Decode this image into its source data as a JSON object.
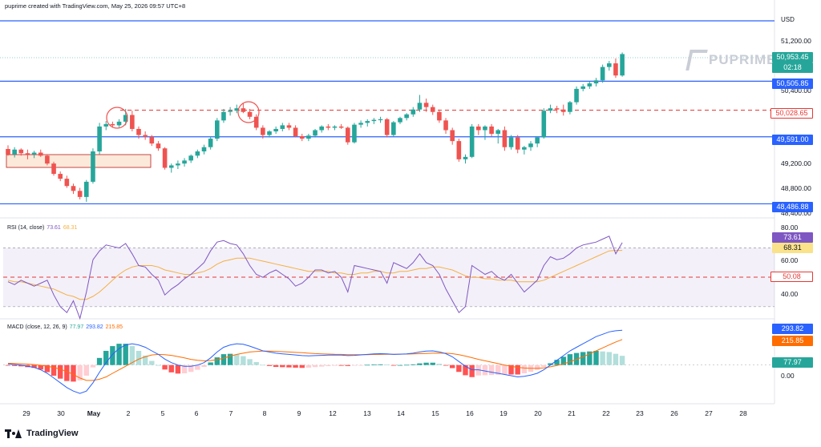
{
  "header": {
    "text": "puprime created with TradingView.com, May 25, 2026 09:57 UTC+8"
  },
  "currency_label": "USD",
  "brand": {
    "name": "PUPRIME"
  },
  "price_axis": {
    "ticks": [
      "51,200.00",
      "50,400.00",
      "49,200.00",
      "48,800.00",
      "48,400.00"
    ]
  },
  "price_labels": {
    "last_price": "50,953.45",
    "countdown": "02:18",
    "level_1": "50,505.85",
    "level_2": "50,028.65",
    "level_3": "49,591.00",
    "level_4": "48,486.88"
  },
  "rsi": {
    "title": "RSI (14, close)",
    "value_1": "73.61",
    "value_2": "68.31",
    "axis_ticks": [
      "80.00",
      "60.00",
      "40.00"
    ],
    "label_rsi": "73.61",
    "label_ma": "68.31",
    "label_mid": "50.08"
  },
  "macd": {
    "title": "MACD (close, 12, 26, 9)",
    "value_hist": "77.97",
    "value_macd": "293.82",
    "value_signal": "215.85",
    "label_macd": "293.82",
    "label_signal": "215.85",
    "label_hist": "77.97",
    "zero_tick": "0.00"
  },
  "date_axis": {
    "ticks": [
      "29",
      "30",
      "May",
      "2",
      "5",
      "6",
      "7",
      "8",
      "9",
      "12",
      "13",
      "14",
      "15",
      "16",
      "19",
      "20",
      "21",
      "22",
      "23",
      "26",
      "27",
      "28"
    ]
  },
  "footer": {
    "logo_text": "TradingView"
  },
  "colors": {
    "bull": "#26a69a",
    "bear": "#ef5350",
    "level_line": "#2962ff",
    "dashed_level": "#e53935",
    "rsi_line": "#7e57c2",
    "rsi_ma": "#f5b041",
    "macd_line": "#2962ff",
    "signal_line": "#ff6d00"
  },
  "chart_data": {
    "type": "candlestick",
    "unit": "USD",
    "levels": [
      50505.85,
      50028.65,
      49591.0,
      48486.88
    ],
    "last_price": 50953.45,
    "candles": [
      [
        49390,
        49450,
        49280,
        49300
      ],
      [
        49300,
        49420,
        49250,
        49380
      ],
      [
        49380,
        49400,
        49280,
        49320
      ],
      [
        49320,
        49380,
        49220,
        49300
      ],
      [
        49300,
        49360,
        49240,
        49330
      ],
      [
        49330,
        49380,
        49260,
        49280
      ],
      [
        49280,
        49300,
        49120,
        49150
      ],
      [
        49150,
        49180,
        48950,
        48980
      ],
      [
        48980,
        49020,
        48860,
        48900
      ],
      [
        48900,
        48950,
        48750,
        48780
      ],
      [
        48780,
        48820,
        48650,
        48700
      ],
      [
        48700,
        48750,
        48560,
        48600
      ],
      [
        48600,
        48880,
        48520,
        48850
      ],
      [
        48850,
        49400,
        48820,
        49350
      ],
      [
        49350,
        49820,
        49300,
        49760
      ],
      [
        49760,
        49850,
        49700,
        49800
      ],
      [
        49800,
        49840,
        49740,
        49780
      ],
      [
        49780,
        49880,
        49750,
        49840
      ],
      [
        49840,
        50050,
        49780,
        49950
      ],
      [
        49950,
        50020,
        49680,
        49720
      ],
      [
        49720,
        49760,
        49560,
        49620
      ],
      [
        49620,
        49680,
        49540,
        49590
      ],
      [
        49590,
        49620,
        49440,
        49480
      ],
      [
        49480,
        49520,
        49360,
        49400
      ],
      [
        49400,
        49420,
        49050,
        49080
      ],
      [
        49080,
        49150,
        49000,
        49120
      ],
      [
        49120,
        49200,
        49060,
        49150
      ],
      [
        49150,
        49240,
        49100,
        49200
      ],
      [
        49200,
        49300,
        49160,
        49280
      ],
      [
        49280,
        49380,
        49240,
        49350
      ],
      [
        49350,
        49460,
        49300,
        49420
      ],
      [
        49420,
        49600,
        49380,
        49560
      ],
      [
        49560,
        49900,
        49520,
        49860
      ],
      [
        49860,
        50050,
        49820,
        50000
      ],
      [
        50000,
        50080,
        49940,
        50020
      ],
      [
        50020,
        50120,
        49980,
        50060
      ],
      [
        50060,
        50140,
        49980,
        50000
      ],
      [
        50000,
        50050,
        49880,
        49920
      ],
      [
        49920,
        49960,
        49700,
        49740
      ],
      [
        49740,
        49780,
        49560,
        49620
      ],
      [
        49620,
        49700,
        49580,
        49680
      ],
      [
        49680,
        49760,
        49640,
        49720
      ],
      [
        49720,
        49820,
        49680,
        49780
      ],
      [
        49780,
        49820,
        49700,
        49740
      ],
      [
        49740,
        49780,
        49580,
        49600
      ],
      [
        49600,
        49640,
        49520,
        49560
      ],
      [
        49560,
        49640,
        49520,
        49610
      ],
      [
        49610,
        49720,
        49580,
        49700
      ],
      [
        49700,
        49780,
        49660,
        49760
      ],
      [
        49760,
        49800,
        49700,
        49740
      ],
      [
        49740,
        49780,
        49700,
        49760
      ],
      [
        49760,
        49800,
        49720,
        49740
      ],
      [
        49740,
        49760,
        49460,
        49500
      ],
      [
        49500,
        49820,
        49480,
        49790
      ],
      [
        49790,
        49860,
        49740,
        49820
      ],
      [
        49820,
        49880,
        49760,
        49850
      ],
      [
        49850,
        49900,
        49800,
        49870
      ],
      [
        49870,
        49920,
        49820,
        49880
      ],
      [
        49880,
        49900,
        49580,
        49620
      ],
      [
        49620,
        49850,
        49600,
        49830
      ],
      [
        49830,
        49920,
        49800,
        49900
      ],
      [
        49900,
        49980,
        49860,
        49960
      ],
      [
        49960,
        50080,
        49920,
        50040
      ],
      [
        50040,
        50280,
        50000,
        50150
      ],
      [
        50150,
        50220,
        50000,
        50080
      ],
      [
        50080,
        50120,
        49950,
        50000
      ],
      [
        50000,
        50040,
        49820,
        49860
      ],
      [
        49860,
        49900,
        49640,
        49700
      ],
      [
        49700,
        49740,
        49460,
        49520
      ],
      [
        49520,
        49560,
        49180,
        49220
      ],
      [
        49220,
        49300,
        49150,
        49260
      ],
      [
        49260,
        49800,
        49240,
        49760
      ],
      [
        49760,
        49800,
        49620,
        49700
      ],
      [
        49700,
        49780,
        49540,
        49760
      ],
      [
        49760,
        49800,
        49600,
        49640
      ],
      [
        49640,
        49720,
        49480,
        49700
      ],
      [
        49700,
        49760,
        49360,
        49420
      ],
      [
        49420,
        49620,
        49380,
        49580
      ],
      [
        49580,
        49620,
        49320,
        49380
      ],
      [
        49380,
        49440,
        49300,
        49420
      ],
      [
        49420,
        49520,
        49360,
        49480
      ],
      [
        49480,
        49600,
        49420,
        49580
      ],
      [
        49580,
        50060,
        49560,
        50020
      ],
      [
        50020,
        50120,
        49980,
        50060
      ],
      [
        50060,
        50100,
        49980,
        50040
      ],
      [
        50040,
        50120,
        49940,
        50000
      ],
      [
        50000,
        50180,
        49960,
        50160
      ],
      [
        50160,
        50420,
        50120,
        50380
      ],
      [
        50380,
        50460,
        50340,
        50420
      ],
      [
        50420,
        50500,
        50380,
        50470
      ],
      [
        50470,
        50560,
        50420,
        50520
      ],
      [
        50520,
        50780,
        50480,
        50740
      ],
      [
        50740,
        50840,
        50680,
        50800
      ],
      [
        50800,
        50880,
        50560,
        50600
      ],
      [
        50600,
        50980,
        50580,
        50953
      ]
    ],
    "rsi_value": 73.61,
    "rsi_ma": 68.31,
    "rsi_mid": 50.08,
    "rsi_ylim": [
      25,
      85
    ],
    "rsi_series": [
      47,
      45,
      48,
      46,
      44,
      46,
      48,
      38,
      30,
      26,
      34,
      22,
      40,
      62,
      68,
      72,
      71,
      70,
      73,
      66,
      58,
      57,
      52,
      48,
      38,
      42,
      45,
      49,
      52,
      56,
      60,
      68,
      74,
      75,
      73,
      72,
      66,
      58,
      52,
      50,
      53,
      55,
      52,
      49,
      44,
      46,
      50,
      55,
      55,
      53,
      54,
      50,
      40,
      58,
      57,
      56,
      55,
      54,
      46,
      60,
      58,
      56,
      60,
      66,
      60,
      58,
      52,
      42,
      34,
      26,
      30,
      58,
      55,
      52,
      54,
      50,
      48,
      52,
      46,
      40,
      44,
      48,
      58,
      64,
      62,
      63,
      66,
      70,
      72,
      73,
      74,
      76,
      78,
      66,
      73.61
    ],
    "rsi_ma_series": [
      48,
      47,
      47,
      46,
      45,
      44,
      43,
      42,
      40,
      38,
      37,
      35,
      35,
      37,
      40,
      44,
      48,
      52,
      55,
      57,
      58,
      58,
      58,
      57,
      55,
      54,
      53,
      52,
      52,
      53,
      54,
      56,
      59,
      61,
      62,
      63,
      63,
      63,
      62,
      61,
      60,
      59,
      58,
      57,
      56,
      55,
      54,
      54,
      54,
      54,
      53,
      53,
      52,
      52,
      53,
      53,
      54,
      54,
      53,
      53,
      54,
      54,
      55,
      56,
      56,
      57,
      57,
      56,
      55,
      53,
      51,
      50,
      50,
      49,
      49,
      48,
      48,
      48,
      47,
      47,
      47,
      47,
      48,
      50,
      52,
      54,
      56,
      58,
      60,
      62,
      64,
      66,
      68,
      68.31,
      68.31
    ],
    "macd_value": 293.82,
    "signal_value": 215.85,
    "hist_value": 77.97,
    "macd_ylim": [
      -300,
      350
    ],
    "macd_series": [
      10,
      5,
      0,
      -10,
      -20,
      -40,
      -70,
      -110,
      -150,
      -190,
      -220,
      -240,
      -220,
      -150,
      -60,
      20,
      90,
      140,
      170,
      180,
      170,
      150,
      120,
      90,
      50,
      20,
      0,
      -10,
      -10,
      0,
      20,
      60,
      110,
      150,
      170,
      180,
      175,
      160,
      140,
      120,
      110,
      100,
      95,
      90,
      85,
      80,
      78,
      80,
      82,
      84,
      85,
      84,
      80,
      82,
      86,
      90,
      94,
      96,
      95,
      90,
      92,
      95,
      100,
      110,
      118,
      120,
      112,
      96,
      70,
      30,
      -10,
      -40,
      -40,
      -50,
      -60,
      -70,
      -80,
      -90,
      -100,
      -95,
      -85,
      -70,
      -40,
      0,
      40,
      80,
      120,
      150,
      180,
      210,
      240,
      260,
      280,
      290,
      293.82
    ],
    "signal_series": [
      15,
      13,
      11,
      8,
      4,
      -2,
      -10,
      -20,
      -35,
      -55,
      -80,
      -110,
      -130,
      -130,
      -120,
      -100,
      -70,
      -40,
      -10,
      20,
      50,
      70,
      85,
      90,
      88,
      82,
      72,
      60,
      48,
      40,
      36,
      38,
      45,
      58,
      75,
      90,
      100,
      110,
      115,
      118,
      118,
      116,
      113,
      110,
      107,
      104,
      100,
      97,
      95,
      93,
      91,
      90,
      88,
      87,
      87,
      88,
      89,
      90,
      91,
      91,
      92,
      93,
      94,
      96,
      98,
      100,
      101,
      100,
      96,
      88,
      76,
      62,
      48,
      36,
      24,
      12,
      0,
      -10,
      -20,
      -25,
      -28,
      -28,
      -24,
      -15,
      -4,
      10,
      28,
      48,
      70,
      95,
      120,
      145,
      170,
      195,
      215.85
    ]
  }
}
